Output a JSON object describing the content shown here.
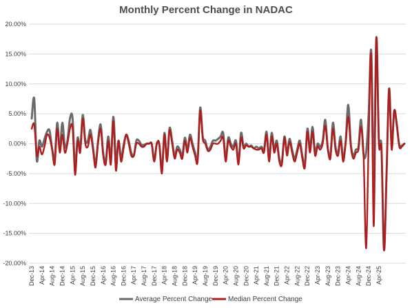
{
  "chart_data": {
    "type": "line",
    "title": "Monthly Percent Change in NADAC",
    "xlabel": "",
    "ylabel": "",
    "ylim": [
      -20,
      20
    ],
    "y_ticks": [
      20,
      15,
      10,
      5,
      0,
      -5,
      -10,
      -15,
      -20
    ],
    "y_tick_labels": [
      "20.00%",
      "15.00%",
      "10.00%",
      "5.00%",
      "0.00%",
      "-5.00%",
      "-10.00%",
      "-15.00%",
      "-20.00%"
    ],
    "x_start": "Dec-13",
    "x_tick_labels": [
      "Dec-13",
      "Apr-14",
      "Aug-14",
      "Dec-14",
      "Apr-15",
      "Aug-15",
      "Dec-15",
      "Apr-16",
      "Aug-16",
      "Dec-16",
      "Apr-17",
      "Aug-17",
      "Dec-17",
      "Apr-18",
      "Aug-18",
      "Dec-18",
      "Apr-19",
      "Aug-19",
      "Dec-19",
      "Apr-20",
      "Aug-20",
      "Dec-20",
      "Apr-21",
      "Aug-21",
      "Dec-21",
      "Apr-22",
      "Aug-22",
      "Dec-22",
      "Apr-23",
      "Aug-23",
      "Dec-23",
      "Apr-24",
      "Aug-24",
      "Dec-24",
      "Apr-25"
    ],
    "grid": true,
    "legend": "bottom",
    "series": [
      {
        "name": "Average Percent Change",
        "color": "#6b6b6b",
        "values": [
          4.2,
          7.5,
          -2.8,
          0.5,
          -0.5,
          0.8,
          2.0,
          2.2,
          -0.8,
          -2.5,
          3.5,
          -1.0,
          3.5,
          -0.5,
          0.5,
          4.2,
          4.3,
          -4.0,
          1.0,
          -1.0,
          4.8,
          0.5,
          0.5,
          2.3,
          -0.5,
          -3.5,
          0.5,
          3.2,
          -1.5,
          -3.0,
          1.2,
          -2.8,
          4.5,
          -3.0,
          0.5,
          -2.5,
          -0.2,
          1.5,
          0.5,
          -1.5,
          -2.0,
          0.5,
          0.5,
          -0.2,
          -0.2,
          0.0,
          0.0,
          0.0,
          -2.8,
          0.0,
          -0.2,
          -4.5,
          1.8,
          -2.8,
          2.6,
          0.5,
          -2.0,
          -0.5,
          -1.0,
          -2.0,
          1.0,
          -1.0,
          1.5,
          0.0,
          -1.5,
          -2.5,
          6.0,
          1.2,
          0.5,
          -1.0,
          -0.5,
          0.5,
          0.5,
          0.8,
          1.2,
          1.8,
          -2.5,
          1.0,
          0.0,
          -0.5,
          0.5,
          -3.0,
          1.8,
          -0.5,
          0.0,
          -0.5,
          -0.3,
          -0.8,
          -0.5,
          -0.8,
          -0.5,
          -1.0,
          2.0,
          -2.5,
          1.8,
          -1.0,
          0.5,
          -2.5,
          -3.0,
          1.2,
          -1.5,
          0.8,
          -1.0,
          -2.5,
          -1.0,
          0.5,
          -2.0,
          -3.5,
          2.5,
          -1.0,
          2.8,
          -1.5,
          0.0,
          -0.5,
          0.5,
          4.0,
          -0.8,
          -2.0,
          3.5,
          -0.5,
          -1.5,
          1.2,
          -2.5,
          0.5,
          6.5,
          0.0,
          -2.0,
          -1.0,
          -0.5,
          4.0,
          -1.8,
          -1.5,
          5.0,
          15.5,
          -6.0,
          17.8,
          0.5,
          -0.5,
          -17.8,
          -5.0,
          9.2,
          -0.5,
          5.5,
          3.0,
          -0.2,
          -0.3,
          0.0
        ]
      },
      {
        "name": "Median Percent Change",
        "color": "#b01c1c",
        "values": [
          2.5,
          3.2,
          -2.0,
          -0.5,
          -1.8,
          -0.5,
          1.5,
          1.0,
          -1.0,
          -3.5,
          2.5,
          -1.5,
          1.5,
          -1.5,
          0.0,
          2.5,
          2.7,
          -5.2,
          0.5,
          -1.5,
          4.2,
          0.0,
          -0.5,
          1.5,
          -1.0,
          -4.0,
          0.0,
          2.5,
          -2.0,
          -3.5,
          0.5,
          -3.5,
          3.8,
          -4.5,
          0.5,
          -3.0,
          -0.8,
          1.5,
          0.0,
          -2.0,
          -2.0,
          0.0,
          0.0,
          -0.5,
          -0.5,
          0.0,
          0.0,
          0.0,
          -3.0,
          0.0,
          0.0,
          -5.0,
          1.5,
          -3.0,
          2.2,
          0.0,
          -2.5,
          -1.0,
          -1.5,
          -2.5,
          0.5,
          -1.5,
          1.0,
          -0.5,
          -2.0,
          -3.0,
          5.5,
          0.8,
          0.0,
          -1.2,
          -1.0,
          0.0,
          0.0,
          0.0,
          0.5,
          1.0,
          -3.0,
          0.5,
          -0.5,
          -1.0,
          0.0,
          -3.5,
          1.0,
          -0.8,
          -0.3,
          -0.5,
          -0.5,
          -0.8,
          -1.0,
          -1.0,
          -0.8,
          -1.5,
          1.5,
          -3.0,
          1.2,
          -1.5,
          0.0,
          -3.0,
          -3.5,
          1.0,
          -2.0,
          0.3,
          -1.5,
          -3.0,
          -1.5,
          0.0,
          -2.5,
          -4.0,
          2.0,
          -1.5,
          2.0,
          -2.0,
          -0.5,
          -1.0,
          0.0,
          3.0,
          -1.0,
          -2.5,
          2.5,
          -1.0,
          -2.0,
          0.5,
          -3.0,
          0.0,
          4.5,
          -0.5,
          -2.5,
          -1.5,
          -1.0,
          2.8,
          -2.0,
          -17.5,
          0.5,
          14.8,
          -13.8,
          17.5,
          0.0,
          -1.0,
          -17.8,
          -5.5,
          9.2,
          -1.0,
          5.5,
          3.5,
          -0.5,
          -0.5,
          0.0
        ]
      }
    ]
  }
}
